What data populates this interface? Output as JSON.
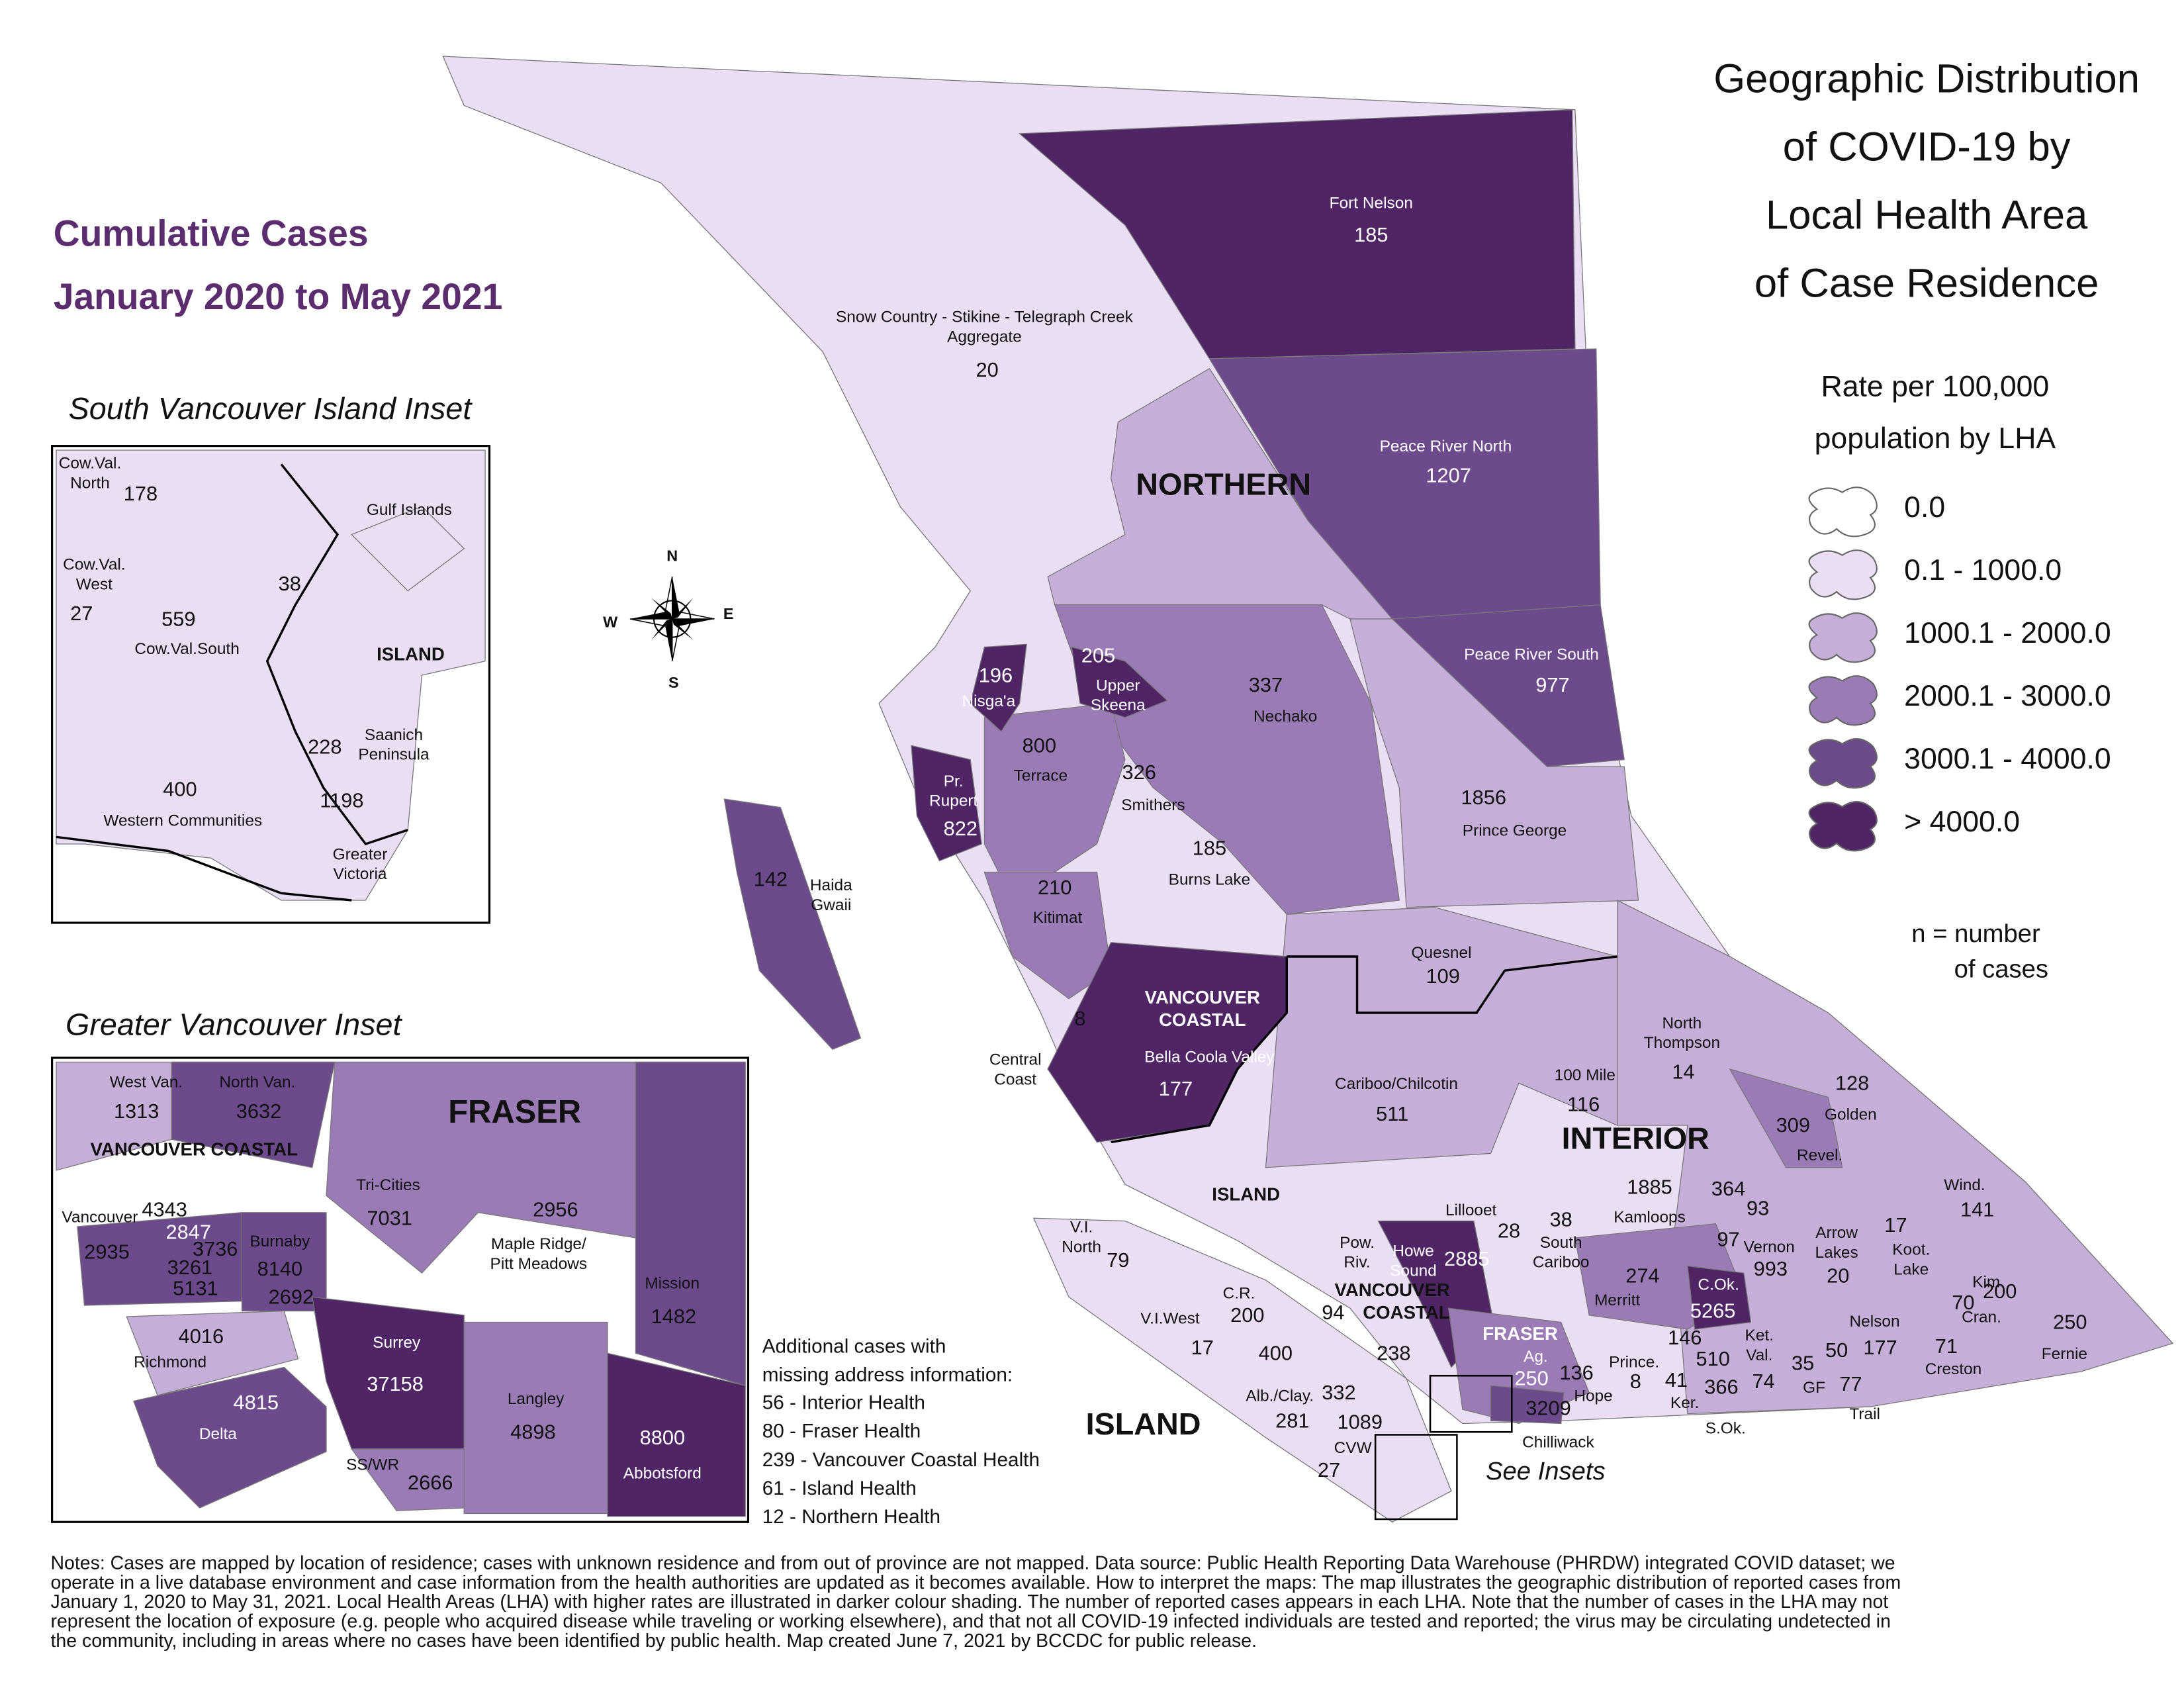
{
  "header": {
    "title_lines": [
      "Geographic Distribution",
      "of COVID-19 by",
      "Local Health Area",
      "of Case Residence"
    ],
    "subtitle_lines": [
      "Cumulative Cases",
      "January 2020 to May 2021"
    ]
  },
  "legend": {
    "title_lines": [
      "Rate per 100,000",
      "population by LHA"
    ],
    "classes": [
      {
        "label": "0.0",
        "color": "#ffffff"
      },
      {
        "label": "0.1 - 1000.0",
        "color": "#e9def3"
      },
      {
        "label": "1000.1 - 2000.0",
        "color": "#c5aed8"
      },
      {
        "label": "2000.1 - 3000.0",
        "color": "#9b7bb6"
      },
      {
        "label": "3000.1 - 4000.0",
        "color": "#6c4a8c"
      },
      {
        "label": "> 4000.0",
        "color": "#4f2565"
      }
    ],
    "note_lines": [
      "n = number",
      "of cases"
    ]
  },
  "compass": [
    "N",
    "E",
    "S",
    "W"
  ],
  "main_map": {
    "region_labels": [
      {
        "lines": [
          "NORTHERN"
        ]
      },
      {
        "lines": [
          "INTERIOR"
        ]
      },
      {
        "lines": [
          "ISLAND"
        ]
      },
      {
        "lines": [
          "ISLAND"
        ]
      },
      {
        "lines": [
          "VANCOUVER",
          "COASTAL"
        ]
      },
      {
        "lines": [
          "VANCOUVER",
          "COASTAL"
        ]
      },
      {
        "lines": [
          "FRASER"
        ]
      }
    ],
    "labels": [
      {
        "name": [
          "Fort Nelson"
        ],
        "cases": 185
      },
      {
        "name": [
          "Snow Country - Stikine - Telegraph Creek",
          "Aggregate"
        ],
        "cases": 20
      },
      {
        "name": [
          "Peace River North"
        ],
        "cases": 1207
      },
      {
        "name": [
          "Peace River South"
        ],
        "cases": 977
      },
      {
        "name": [
          "Nisga'a"
        ],
        "cases": 196
      },
      {
        "name": [
          "Upper",
          "Skeena"
        ],
        "cases": 205
      },
      {
        "name": [
          "Nechako"
        ],
        "cases": 337
      },
      {
        "name": [
          "Terrace"
        ],
        "cases": 800
      },
      {
        "name": [
          "Smithers"
        ],
        "cases": 326
      },
      {
        "name": [
          "Pr.",
          "Rupert"
        ],
        "cases": 822
      },
      {
        "name": [
          "Prince George"
        ],
        "cases": 1856
      },
      {
        "name": [
          "Haida",
          "Gwaii"
        ],
        "cases": 142
      },
      {
        "name": [
          "Burns Lake"
        ],
        "cases": 185
      },
      {
        "name": [
          "Kitimat"
        ],
        "cases": 210
      },
      {
        "name": [
          "Quesnel"
        ],
        "cases": 109
      },
      {
        "name": [
          "Central",
          "Coast"
        ],
        "cases": 8
      },
      {
        "name": [
          "Bella Coola Valley"
        ],
        "cases": 177
      },
      {
        "name": [
          "North",
          "Thompson"
        ],
        "cases": 14
      },
      {
        "name": [
          "100 Mile"
        ],
        "cases": 116
      },
      {
        "name": [
          "Cariboo/Chilcotin"
        ],
        "cases": 511
      },
      {
        "name": [
          "Golden"
        ],
        "cases": 128
      },
      {
        "name": [
          "Revel."
        ],
        "cases": 309
      },
      {
        "name": [
          "Kamloops"
        ],
        "cases": 1885
      },
      {
        "name": [
          "Lillooet"
        ],
        "cases": 28
      },
      {
        "name": [
          "South",
          "Cariboo"
        ],
        "cases": 38
      },
      {
        "cases": 364
      },
      {
        "cases": 93
      },
      {
        "name": [
          "Wind."
        ],
        "cases": 141
      },
      {
        "name": [
          "V.I.",
          "North"
        ],
        "cases": 79
      },
      {
        "name": [
          "Pow.",
          "Riv."
        ]
      },
      {
        "name": [
          "Howe",
          "Sound"
        ],
        "cases": 2885
      },
      {
        "cases": 97
      },
      {
        "name": [
          "Vernon"
        ],
        "cases": 993
      },
      {
        "name": [
          "Arrow",
          "Lakes"
        ],
        "cases": 20
      },
      {
        "name": [
          "Koot.",
          "Lake"
        ],
        "cases": 17
      },
      {
        "name": [
          "Merritt"
        ],
        "cases": 274
      },
      {
        "name": [
          "C.Ok."
        ],
        "cases": 5265
      },
      {
        "name": [
          "Kim."
        ],
        "cases": 70
      },
      {
        "name": [
          "Cran."
        ],
        "cases": 200
      },
      {
        "name": [
          "V.I.West"
        ],
        "cases": 17
      },
      {
        "name": [
          "C.R."
        ],
        "cases": 200
      },
      {
        "cases": 94
      },
      {
        "name": [
          "Nelson"
        ],
        "cases": 177
      },
      {
        "cases": 50
      },
      {
        "name": [
          "Fernie"
        ],
        "cases": 250
      },
      {
        "name": [
          "Ag."
        ],
        "cases": 250
      },
      {
        "name": [
          "Hope"
        ],
        "cases": 136
      },
      {
        "cases": 238
      },
      {
        "cases": 400
      },
      {
        "name": [
          "Prince."
        ],
        "cases": 8
      },
      {
        "cases": 146
      },
      {
        "name": [
          "Ker."
        ],
        "cases": 41
      },
      {
        "cases": 510
      },
      {
        "name": [
          "Ket.",
          "Val."
        ],
        "cases": 74
      },
      {
        "name": [
          "GF"
        ],
        "cases": 35
      },
      {
        "cases": 77
      },
      {
        "name": [
          "Creston"
        ],
        "cases": 71
      },
      {
        "name": [
          "S.Ok."
        ],
        "cases": 366
      },
      {
        "name": [
          "Chilliwack"
        ],
        "cases": 3209
      },
      {
        "name": [
          "Trail"
        ]
      },
      {
        "name": [
          "Alb./Clay."
        ],
        "cases": 281
      },
      {
        "cases": 332
      },
      {
        "cases": 1089
      },
      {
        "name": [
          "CVW"
        ],
        "cases": 27
      }
    ],
    "see_insets": "See Insets"
  },
  "south_island_inset": {
    "title": "South Vancouver Island Inset",
    "region_labels": [
      {
        "lines": [
          "ISLAND"
        ]
      }
    ],
    "labels": [
      {
        "name": [
          "Cow.Val.",
          "North"
        ],
        "cases": 178
      },
      {
        "name": [
          "Gulf Islands"
        ]
      },
      {
        "name": [
          "Cow.Val.",
          "West"
        ],
        "cases": 27
      },
      {
        "name": [
          "Cow.Val.South"
        ],
        "cases": 559
      },
      {
        "cases": 38
      },
      {
        "name": [
          "Saanich",
          "Peninsula"
        ],
        "cases": 228
      },
      {
        "name": [
          "Western Communities"
        ],
        "cases": 400
      },
      {
        "name": [
          "Greater",
          "Victoria"
        ],
        "cases": 1198
      }
    ]
  },
  "greater_vancouver_inset": {
    "title": "Greater Vancouver Inset",
    "region_labels": [
      {
        "lines": [
          "VANCOUVER COASTAL"
        ]
      },
      {
        "lines": [
          "FRASER"
        ]
      }
    ],
    "labels": [
      {
        "name": [
          "West Van."
        ],
        "cases": 1313
      },
      {
        "name": [
          "North Van."
        ],
        "cases": 3632
      },
      {
        "name": [
          "Tri-Cities"
        ],
        "cases": 7031
      },
      {
        "name": [
          "Maple Ridge/",
          "Pitt Meadows"
        ],
        "cases": 2956
      },
      {
        "name": [
          "Mission"
        ],
        "cases": 1482
      },
      {
        "name": [
          "Vancouver"
        ],
        "cases": 4343
      },
      {
        "cases": 2847
      },
      {
        "cases": 2935
      },
      {
        "cases": 3736
      },
      {
        "cases": 3261
      },
      {
        "cases": 5131
      },
      {
        "name": [
          "Burnaby"
        ],
        "cases": 8140
      },
      {
        "cases": 2692
      },
      {
        "name": [
          "Richmond"
        ],
        "cases": 4016
      },
      {
        "name": [
          "Surrey"
        ],
        "cases": 37158
      },
      {
        "name": [
          "Langley"
        ],
        "cases": 4898
      },
      {
        "name": [
          "Abbotsford"
        ],
        "cases": 8800
      },
      {
        "name": [
          "Delta"
        ],
        "cases": 4815
      },
      {
        "name": [
          "SS/WR"
        ],
        "cases": 2666
      }
    ]
  },
  "additional_cases": {
    "heading_lines": [
      "Additional cases with",
      "missing address information:"
    ],
    "items": [
      "56 - Interior Health",
      "80 - Fraser Health",
      "239 - Vancouver Coastal Health",
      "61 - Island Health",
      "12 - Northern Health"
    ]
  },
  "notes": [
    "Notes: Cases are mapped by location of residence; cases with unknown residence and from out of province are not mapped. Data source: Public Health Reporting Data Warehouse (PHRDW) integrated COVID dataset; we",
    "operate in a live database environment and case information from the health authorities are updated as it becomes available. How to interpret the maps: The map illustrates the geographic distribution of reported cases from",
    "January 1, 2020 to May 31, 2021. Local Health Areas (LHA) with higher rates are illustrated in darker colour shading. The number of reported cases appears in each LHA. Note that the number of cases in the LHA may not",
    "represent the location of exposure (e.g. people who acquired disease while traveling or working elsewhere), and that not all COVID-19 infected individuals are tested and reported; the virus may be circulating undetected in",
    "the community, including in areas where no cases have been identified by public health. Map created June 7, 2021 by BCCDC for public release."
  ]
}
